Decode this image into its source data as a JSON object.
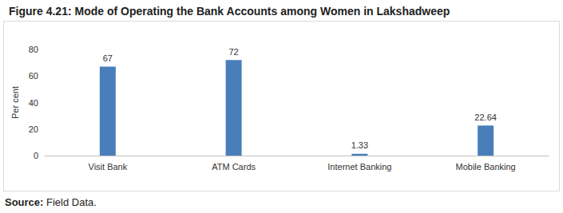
{
  "chart_data": {
    "type": "bar",
    "title": "Figure 4.21: Mode of Operating the Bank Accounts among Women in Lakshadweep",
    "y_label": "Per cent",
    "categories": [
      "Visit Bank",
      "ATM Cards",
      "Internet Banking",
      "Mobile Banking"
    ],
    "values": [
      67,
      72,
      1.33,
      22.64
    ],
    "color": "#4a7ebb",
    "ylim": [
      0,
      80
    ],
    "yticks": [
      0,
      20,
      40,
      60,
      80
    ],
    "grid": false,
    "data_labels": true,
    "source": "Source: Field Data."
  }
}
